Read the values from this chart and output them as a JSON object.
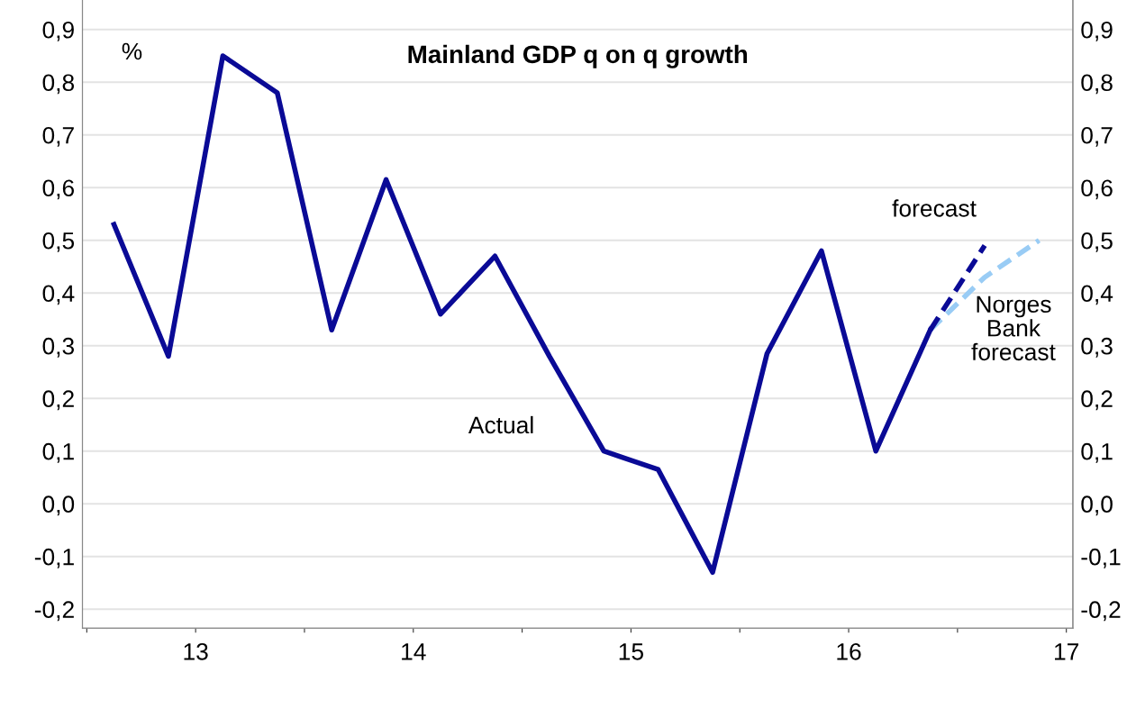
{
  "chart_data": {
    "type": "line",
    "title": "Mainland GDP q on q growth",
    "ylabel": "%",
    "x": [
      12.625,
      12.875,
      13.125,
      13.375,
      13.625,
      13.875,
      14.125,
      14.375,
      14.625,
      14.875,
      15.125,
      15.375,
      15.625,
      15.875,
      16.125,
      16.375
    ],
    "series": [
      {
        "name": "Actual",
        "color": "#0a0a96",
        "line_style": "solid",
        "values": [
          0.53,
          0.28,
          0.85,
          0.78,
          0.33,
          0.615,
          0.36,
          0.47,
          0.28,
          0.1,
          0.065,
          -0.13,
          0.285,
          0.48,
          0.1,
          0.33
        ]
      },
      {
        "name": "forecast",
        "color": "#0a0a96",
        "line_style": "dashed",
        "x": [
          16.375,
          16.625
        ],
        "values": [
          0.33,
          0.49
        ]
      },
      {
        "name": "Norges Bank forecast",
        "color": "#99ccf5",
        "line_style": "dashed",
        "x": [
          16.375,
          16.625,
          16.875
        ],
        "values": [
          0.33,
          0.43,
          0.5
        ]
      }
    ],
    "xlim": [
      12.48,
      17.03
    ],
    "xticks": [
      {
        "value": 12.5,
        "label": null
      },
      {
        "value": 13.5,
        "label": null
      },
      {
        "value": 14.5,
        "label": null
      },
      {
        "value": 15.5,
        "label": null
      },
      {
        "value": 16.5,
        "label": null
      },
      13,
      14,
      15,
      16,
      17
    ],
    "ylim": [
      -0.236,
      0.956
    ],
    "yticks": [
      {
        "value": -0.2,
        "label": "-0,2"
      },
      {
        "value": -0.1,
        "label": "-0,1"
      },
      {
        "value": 0,
        "label": "0,0"
      },
      {
        "value": 0.1,
        "label": "0,1"
      },
      {
        "value": 0.2,
        "label": "0,2"
      },
      {
        "value": 0.3,
        "label": "0,3"
      },
      {
        "value": 0.4,
        "label": "0,4"
      },
      {
        "value": 0.5,
        "label": "0,5"
      },
      {
        "value": 0.6,
        "label": "0,6"
      },
      {
        "value": 0.7,
        "label": "0,7"
      },
      {
        "value": 0.8,
        "label": "0,8"
      },
      {
        "value": 0.9,
        "label": "0,9"
      }
    ],
    "y2lim": [
      -0.236,
      0.956
    ],
    "y2ticks": [
      {
        "value": -0.2,
        "label": "-0,2"
      },
      {
        "value": -0.1,
        "label": "-0,1"
      },
      {
        "value": 0,
        "label": "0,0"
      },
      {
        "value": 0.1,
        "label": "0,1"
      },
      {
        "value": 0.2,
        "label": "0,2"
      },
      {
        "value": 0.3,
        "label": "0,3"
      },
      {
        "value": 0.4,
        "label": "0,4"
      },
      {
        "value": 0.5,
        "label": "0,5"
      },
      {
        "value": 0.6,
        "label": "0,6"
      },
      {
        "value": 0.7,
        "label": "0,7"
      },
      {
        "value": 0.8,
        "label": "0,8"
      },
      {
        "value": 0.9,
        "label": "0,9"
      }
    ],
    "grid": "y",
    "legend": false,
    "marker": "none"
  }
}
